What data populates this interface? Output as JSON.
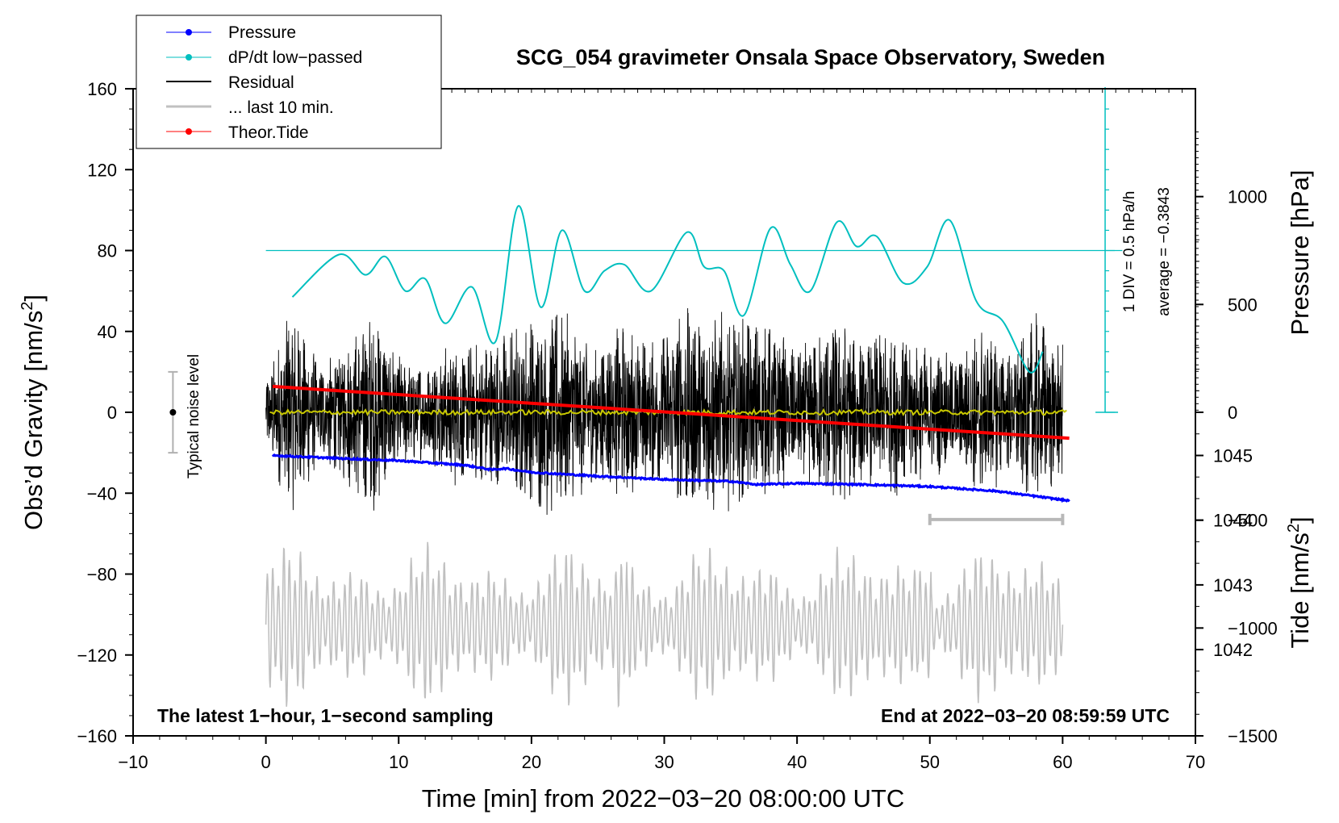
{
  "chart_data": {
    "type": "line",
    "title": "SCG_054 gravimeter Onsala Space Observatory, Sweden",
    "xlabel": "Time [min] from 2022−03−20 08:00:00 UTC",
    "ylabel_left_main": "Obs’d Gravity [nm/s",
    "ylabel_left_sup": "2",
    "ylabel_left_end": "]",
    "ylabel_right_pressure": "Pressure [hPa]",
    "ylabel_right_tide_main": "Tide [nm/s",
    "ylabel_right_tide_sup": "2",
    "ylabel_right_tide_end": "]",
    "xlim": [
      -10,
      70
    ],
    "ylim": [
      -160,
      160
    ],
    "pressure_lim": [
      1040.667,
      1050.667
    ],
    "tide_lim": [
      -1500,
      1500
    ],
    "xticks": [
      "−10",
      "0",
      "10",
      "20",
      "30",
      "40",
      "50",
      "60",
      "70"
    ],
    "yticks": [
      "160",
      "120",
      "80",
      "40",
      "0",
      "−40",
      "−80",
      "−120",
      "−160"
    ],
    "pressure_ticks": [
      "1045",
      "1044",
      "1043",
      "1042"
    ],
    "tide_ticks": [
      "1000",
      "500",
      "0",
      "−500",
      "−1000",
      "−1500"
    ],
    "legend": {
      "position": "top-left",
      "entries": [
        {
          "label": "Pressure",
          "color": "#0000ff",
          "marker": true
        },
        {
          "label": "dP/dt low−passed",
          "color": "#00c0c0",
          "marker": true
        },
        {
          "label": "Residual",
          "color": "#000000",
          "marker": false
        },
        {
          "label": "... last 10 min.",
          "color": "#c0c0c0",
          "marker": false
        },
        {
          "label": "Theor.Tide",
          "color": "#ff0000",
          "marker": true
        }
      ]
    },
    "annotations": {
      "left_bottom": "The latest 1−hour, 1−second sampling",
      "right_bottom": "End at 2022−03−20 08:59:59 UTC",
      "noise_label": "Typical noise level",
      "div_label": "1 DIV = 0.5 hPa/h",
      "average_label": "average = −0.3843"
    },
    "colors": {
      "pressure": "#0000ff",
      "dpdt": "#00bfbf",
      "residual": "#000000",
      "last10": "#c0c0c0",
      "tide": "#ff0000",
      "mean_residual": "#c8c800"
    },
    "series": [
      {
        "name": "Pressure",
        "axis": "pressure",
        "x": [
          0.5,
          5,
          10,
          15,
          17,
          18,
          20,
          25,
          30,
          35,
          37,
          40,
          45,
          50,
          55,
          60.5
        ],
        "values": [
          1045.0,
          1044.96,
          1044.92,
          1044.85,
          1044.78,
          1044.8,
          1044.74,
          1044.68,
          1044.63,
          1044.6,
          1044.55,
          1044.57,
          1044.55,
          1044.52,
          1044.45,
          1044.3
        ]
      },
      {
        "name": "dP/dt low-passed",
        "axis": "gravity_scaled",
        "x": [
          2,
          5.5,
          7.5,
          9,
          10.5,
          12,
          13.5,
          15.5,
          17.3,
          19,
          20.7,
          22.3,
          24,
          25.5,
          27,
          29,
          31.7,
          33,
          34.5,
          36,
          38,
          39.5,
          41,
          43,
          44.5,
          46,
          48,
          49.8,
          51.5,
          53.5,
          55.5,
          57.5,
          58.5
        ],
        "values": [
          57,
          78,
          68,
          77,
          60,
          66,
          44,
          62,
          35,
          102,
          52,
          90,
          60,
          70,
          73,
          60,
          89,
          72,
          70,
          48,
          91,
          73,
          60,
          94,
          82,
          87,
          64,
          72,
          95,
          55,
          45,
          20,
          30
        ]
      },
      {
        "name": "Theor.Tide",
        "axis": "tide",
        "x": [
          0.5,
          60.5
        ],
        "values": [
          120,
          -120
        ]
      },
      {
        "name": "Residual",
        "axis": "gravity",
        "x_range": [
          0,
          60
        ],
        "description_envelope": [
          [
            0,
            18
          ],
          [
            2,
            55
          ],
          [
            4,
            25
          ],
          [
            6,
            35
          ],
          [
            8,
            55
          ],
          [
            10,
            30
          ],
          [
            12,
            25
          ],
          [
            14,
            38
          ],
          [
            16,
            35
          ],
          [
            19,
            45
          ],
          [
            22,
            55
          ],
          [
            25,
            35
          ],
          [
            27,
            45
          ],
          [
            29,
            35
          ],
          [
            32,
            55
          ],
          [
            35,
            50
          ],
          [
            38,
            45
          ],
          [
            40,
            32
          ],
          [
            43,
            50
          ],
          [
            45,
            35
          ],
          [
            47,
            45
          ],
          [
            49,
            35
          ],
          [
            52,
            28
          ],
          [
            54,
            45
          ],
          [
            56,
            30
          ],
          [
            58,
            50
          ],
          [
            60,
            35
          ]
        ]
      }
    ],
    "noise_level": {
      "x": -7,
      "center": 0,
      "half_range": 20
    },
    "last10_bar": {
      "x": [
        50,
        60
      ],
      "y": -53
    }
  }
}
